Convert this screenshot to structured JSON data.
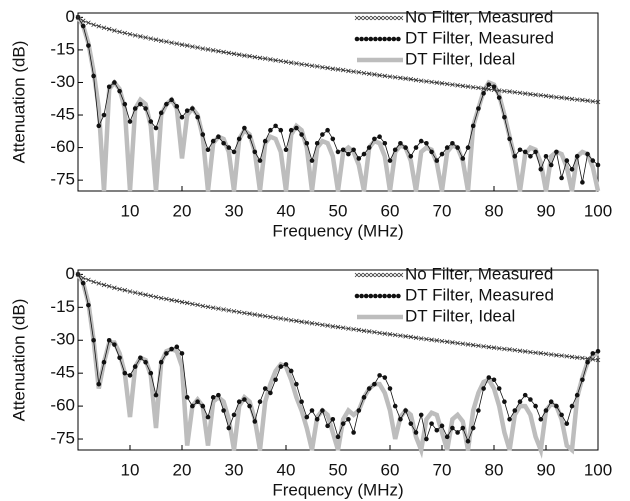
{
  "chart_data": [
    {
      "type": "line",
      "xlabel": "Frequency (MHz)",
      "ylabel": "Attenuation (dB)",
      "xlim": [
        0,
        100
      ],
      "ylim": [
        -80,
        2
      ],
      "xticks": [
        10,
        20,
        30,
        40,
        50,
        60,
        70,
        80,
        90,
        100
      ],
      "yticks": [
        0,
        -15,
        -30,
        -45,
        -60,
        -75
      ],
      "legend": "upper right",
      "x": [
        0,
        1,
        2,
        3,
        4,
        5,
        6,
        7,
        8,
        9,
        10,
        11,
        12,
        13,
        14,
        15,
        16,
        17,
        18,
        19,
        20,
        21,
        22,
        23,
        24,
        25,
        26,
        27,
        28,
        29,
        30,
        31,
        32,
        33,
        34,
        35,
        36,
        37,
        38,
        39,
        40,
        41,
        42,
        43,
        44,
        45,
        46,
        47,
        48,
        49,
        50,
        51,
        52,
        53,
        54,
        55,
        56,
        57,
        58,
        59,
        60,
        61,
        62,
        63,
        64,
        65,
        66,
        67,
        68,
        69,
        70,
        71,
        72,
        73,
        74,
        75,
        76,
        77,
        78,
        79,
        80,
        81,
        82,
        83,
        84,
        85,
        86,
        87,
        88,
        89,
        90,
        91,
        92,
        93,
        94,
        95,
        96,
        97,
        98,
        99,
        100
      ],
      "series": [
        {
          "name": "No Filter, Measured",
          "color": "#333333",
          "marker": "x",
          "values": [
            0,
            -1.6,
            -2.5,
            -3.4,
            -4.1,
            -4.8,
            -5.4,
            -6.1,
            -6.7,
            -7.2,
            -7.8,
            -8.3,
            -8.8,
            -9.3,
            -9.8,
            -10.3,
            -10.8,
            -11.2,
            -11.7,
            -12.1,
            -12.6,
            -13,
            -13.5,
            -13.9,
            -14.4,
            -14.8,
            -15.2,
            -15.6,
            -16,
            -16.4,
            -16.8,
            -17.2,
            -17.6,
            -17.9,
            -18.3,
            -18.7,
            -19,
            -19.4,
            -19.8,
            -20.1,
            -20.5,
            -20.9,
            -21.2,
            -21.6,
            -21.9,
            -22.3,
            -22.6,
            -23,
            -23.3,
            -23.7,
            -24,
            -24.3,
            -24.7,
            -25,
            -25.3,
            -25.7,
            -26,
            -26.3,
            -26.7,
            -27,
            -27.3,
            -27.6,
            -27.9,
            -28.2,
            -28.5,
            -28.9,
            -29.2,
            -29.5,
            -29.8,
            -30.1,
            -30.4,
            -30.7,
            -31,
            -31.3,
            -31.6,
            -31.9,
            -32.2,
            -32.5,
            -32.8,
            -33.1,
            -33.4,
            -33.7,
            -34,
            -34.2,
            -34.5,
            -34.8,
            -35.1,
            -35.4,
            -35.7,
            -35.9,
            -36.2,
            -36.5,
            -36.8,
            -37,
            -37.3,
            -37.6,
            -37.9,
            -38.1,
            -38.4,
            -38.7,
            -39
          ]
        },
        {
          "name": "DT Filter, Measured",
          "color": "#111111",
          "marker": "dot",
          "values": [
            0,
            -4,
            -13,
            -27,
            -50,
            -45,
            -32,
            -30,
            -34,
            -40,
            -48,
            -42,
            -40,
            -42,
            -48,
            -51,
            -44,
            -40,
            -38,
            -41,
            -46,
            -43,
            -42,
            -46,
            -54,
            -61,
            -57,
            -55,
            -58,
            -60,
            -62,
            -56,
            -51,
            -55,
            -62,
            -66,
            -57,
            -52,
            -50,
            -52,
            -61,
            -52,
            -51,
            -54,
            -58,
            -66,
            -58,
            -54,
            -52,
            -56,
            -62,
            -61,
            -63,
            -61,
            -65,
            -63,
            -60,
            -56,
            -55,
            -58,
            -66,
            -61,
            -58,
            -60,
            -64,
            -60,
            -57,
            -58,
            -62,
            -66,
            -63,
            -60,
            -58,
            -60,
            -65,
            -60,
            -50,
            -42,
            -35,
            -31,
            -32,
            -37,
            -46,
            -56,
            -64,
            -61,
            -62,
            -64,
            -62,
            -70,
            -64,
            -68,
            -62,
            -74,
            -66,
            -70,
            -64,
            -76,
            -63,
            -66,
            -68
          ]
        },
        {
          "name": "DT Filter, Ideal",
          "color": "#bdbdbd",
          "marker": "none",
          "values": [
            0,
            -4,
            -12,
            -25,
            -42,
            -80,
            -33,
            -30,
            -33,
            -42,
            -80,
            -42,
            -38,
            -40,
            -50,
            -80,
            -45,
            -40,
            -38,
            -42,
            -65,
            -45,
            -42,
            -45,
            -55,
            -80,
            -58,
            -55,
            -56,
            -62,
            -80,
            -56,
            -52,
            -54,
            -62,
            -80,
            -58,
            -55,
            -56,
            -62,
            -80,
            -54,
            -50,
            -52,
            -60,
            -80,
            -60,
            -57,
            -58,
            -64,
            -80,
            -62,
            -60,
            -62,
            -68,
            -80,
            -60,
            -57,
            -58,
            -64,
            -80,
            -62,
            -59,
            -60,
            -66,
            -80,
            -62,
            -60,
            -61,
            -67,
            -80,
            -62,
            -59,
            -60,
            -66,
            -80,
            -50,
            -42,
            -34,
            -30,
            -31,
            -36,
            -45,
            -55,
            -65,
            -80,
            -63,
            -60,
            -61,
            -67,
            -80,
            -64,
            -62,
            -63,
            -69,
            -80,
            -64,
            -62,
            -63,
            -69,
            -80
          ]
        }
      ]
    },
    {
      "type": "line",
      "xlabel": "Frequency (MHz)",
      "ylabel": "Attenuation (dB)",
      "xlim": [
        0,
        100
      ],
      "ylim": [
        -80,
        2
      ],
      "xticks": [
        10,
        20,
        30,
        40,
        50,
        60,
        70,
        80,
        90,
        100
      ],
      "yticks": [
        0,
        -15,
        -30,
        -45,
        -60,
        -75
      ],
      "legend": "upper right",
      "x": [
        0,
        1,
        2,
        3,
        4,
        5,
        6,
        7,
        8,
        9,
        10,
        11,
        12,
        13,
        14,
        15,
        16,
        17,
        18,
        19,
        20,
        21,
        22,
        23,
        24,
        25,
        26,
        27,
        28,
        29,
        30,
        31,
        32,
        33,
        34,
        35,
        36,
        37,
        38,
        39,
        40,
        41,
        42,
        43,
        44,
        45,
        46,
        47,
        48,
        49,
        50,
        51,
        52,
        53,
        54,
        55,
        56,
        57,
        58,
        59,
        60,
        61,
        62,
        63,
        64,
        65,
        66,
        67,
        68,
        69,
        70,
        71,
        72,
        73,
        74,
        75,
        76,
        77,
        78,
        79,
        80,
        81,
        82,
        83,
        84,
        85,
        86,
        87,
        88,
        89,
        90,
        91,
        92,
        93,
        94,
        95,
        96,
        97,
        98,
        99,
        100
      ],
      "series": [
        {
          "name": "No Filter, Measured",
          "color": "#333333",
          "marker": "x",
          "values": [
            0,
            -1.6,
            -2.5,
            -3.4,
            -4.1,
            -4.8,
            -5.4,
            -6.1,
            -6.7,
            -7.2,
            -7.8,
            -8.3,
            -8.8,
            -9.3,
            -9.8,
            -10.3,
            -10.8,
            -11.2,
            -11.7,
            -12.1,
            -12.6,
            -13,
            -13.5,
            -13.9,
            -14.4,
            -14.8,
            -15.2,
            -15.6,
            -16,
            -16.4,
            -16.8,
            -17.2,
            -17.6,
            -17.9,
            -18.3,
            -18.7,
            -19,
            -19.4,
            -19.8,
            -20.1,
            -20.5,
            -20.9,
            -21.2,
            -21.6,
            -21.9,
            -22.3,
            -22.6,
            -23,
            -23.3,
            -23.7,
            -24,
            -24.3,
            -24.7,
            -25,
            -25.3,
            -25.7,
            -26,
            -26.3,
            -26.7,
            -27,
            -27.3,
            -27.6,
            -27.9,
            -28.2,
            -28.5,
            -28.9,
            -29.2,
            -29.5,
            -29.8,
            -30.1,
            -30.4,
            -30.7,
            -31,
            -31.3,
            -31.6,
            -31.9,
            -32.2,
            -32.5,
            -32.8,
            -33.1,
            -33.4,
            -33.7,
            -34,
            -34.2,
            -34.5,
            -34.8,
            -35.1,
            -35.4,
            -35.7,
            -35.9,
            -36.2,
            -36.5,
            -36.8,
            -37,
            -37.3,
            -37.6,
            -37.9,
            -38.1,
            -38.4,
            -38.7,
            -39
          ]
        },
        {
          "name": "DT Filter, Measured",
          "color": "#111111",
          "marker": "dot",
          "values": [
            0,
            -4,
            -14,
            -30,
            -50,
            -40,
            -30,
            -32,
            -38,
            -45,
            -46,
            -42,
            -38,
            -40,
            -45,
            -55,
            -40,
            -36,
            -34,
            -33,
            -36,
            -56,
            -60,
            -58,
            -60,
            -65,
            -56,
            -55,
            -62,
            -70,
            -64,
            -58,
            -57,
            -60,
            -67,
            -58,
            -52,
            -54,
            -48,
            -42,
            -41,
            -44,
            -50,
            -58,
            -65,
            -62,
            -66,
            -62,
            -69,
            -66,
            -74,
            -68,
            -66,
            -72,
            -62,
            -56,
            -52,
            -50,
            -46,
            -47,
            -52,
            -60,
            -66,
            -62,
            -68,
            -72,
            -64,
            -75,
            -68,
            -71,
            -69,
            -74,
            -70,
            -72,
            -70,
            -76,
            -70,
            -62,
            -52,
            -47,
            -48,
            -52,
            -58,
            -66,
            -62,
            -58,
            -55,
            -57,
            -60,
            -66,
            -62,
            -58,
            -60,
            -64,
            -68,
            -60,
            -55,
            -48,
            -40,
            -36,
            -35
          ]
        },
        {
          "name": "DT Filter, Ideal",
          "color": "#bdbdbd",
          "marker": "none",
          "values": [
            0,
            -4,
            -13,
            -30,
            -52,
            -40,
            -31,
            -31,
            -36,
            -45,
            -65,
            -42,
            -38,
            -39,
            -46,
            -70,
            -40,
            -35,
            -34,
            -35,
            -42,
            -78,
            -60,
            -57,
            -60,
            -78,
            -58,
            -56,
            -58,
            -66,
            -80,
            -60,
            -56,
            -58,
            -66,
            -80,
            -58,
            -50,
            -44,
            -41,
            -42,
            -48,
            -56,
            -62,
            -70,
            -80,
            -65,
            -62,
            -64,
            -72,
            -80,
            -66,
            -62,
            -64,
            -62,
            -56,
            -52,
            -50,
            -50,
            -54,
            -62,
            -75,
            -65,
            -62,
            -64,
            -74,
            -80,
            -66,
            -63,
            -64,
            -72,
            -80,
            -66,
            -64,
            -67,
            -80,
            -62,
            -54,
            -49,
            -48,
            -52,
            -60,
            -72,
            -80,
            -64,
            -60,
            -60,
            -64,
            -74,
            -80,
            -62,
            -59,
            -60,
            -66,
            -78,
            -80,
            -56,
            -47,
            -40,
            -37,
            -36
          ]
        }
      ]
    }
  ]
}
